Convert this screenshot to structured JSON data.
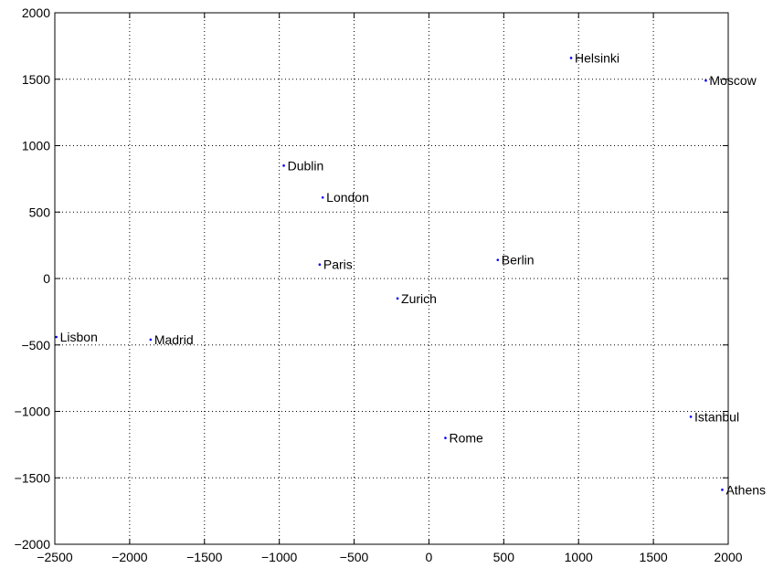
{
  "chart_data": {
    "type": "scatter",
    "title": "",
    "xlabel": "",
    "ylabel": "",
    "xlim": [
      -2500,
      2000
    ],
    "ylim": [
      -2000,
      2000
    ],
    "xticks": [
      -2500,
      -2000,
      -1500,
      -1000,
      -500,
      0,
      500,
      1000,
      1500,
      2000
    ],
    "yticks": [
      -2000,
      -1500,
      -1000,
      -500,
      0,
      500,
      1000,
      1500,
      2000
    ],
    "xtick_labels": [
      "−2500",
      "−2000",
      "−1500",
      "−1000",
      "−500",
      "0",
      "500",
      "1000",
      "1500",
      "2000"
    ],
    "ytick_labels": [
      "−2000",
      "−1500",
      "−1000",
      "−500",
      "0",
      "500",
      "1000",
      "1500",
      "2000"
    ],
    "grid": true,
    "grid_style": "dotted",
    "marker_color": "#0000ff",
    "points": [
      {
        "label": "Helsinki",
        "x": 950,
        "y": 1660
      },
      {
        "label": "Moscow",
        "x": 1850,
        "y": 1490
      },
      {
        "label": "Dublin",
        "x": -970,
        "y": 850
      },
      {
        "label": "London",
        "x": -710,
        "y": 610
      },
      {
        "label": "Paris",
        "x": -730,
        "y": 105
      },
      {
        "label": "Berlin",
        "x": 460,
        "y": 140
      },
      {
        "label": "Zurich",
        "x": -210,
        "y": -150
      },
      {
        "label": "Lisbon",
        "x": -2490,
        "y": -440
      },
      {
        "label": "Madrid",
        "x": -1860,
        "y": -460
      },
      {
        "label": "Istanbul",
        "x": 1750,
        "y": -1040
      },
      {
        "label": "Rome",
        "x": 110,
        "y": -1200
      },
      {
        "label": "Athens",
        "x": 1960,
        "y": -1590
      }
    ]
  }
}
